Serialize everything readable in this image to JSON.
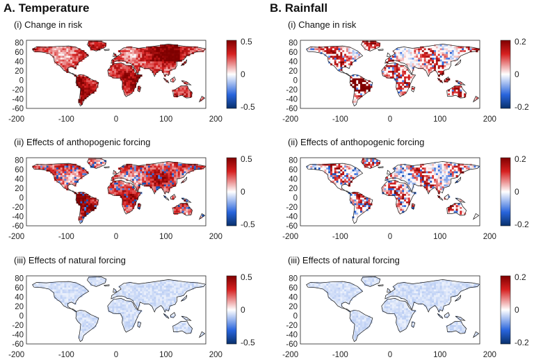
{
  "columns": [
    {
      "title": "A. Temperature",
      "colorbar": {
        "max": "0.5",
        "mid": "0",
        "min": "-0.5"
      },
      "panels": [
        {
          "title": "(i) Change in risk",
          "intensity": "strong",
          "mode": "warm"
        },
        {
          "title": "(ii) Effects of anthopogenic forcing",
          "intensity": "strong-mixed",
          "mode": "warm"
        },
        {
          "title": "(iii) Effects of natural forcing",
          "intensity": "faint",
          "mode": "cool"
        }
      ]
    },
    {
      "title": "B. Rainfall",
      "colorbar": {
        "max": "0.2",
        "mid": "0",
        "min": "-0.2"
      },
      "panels": [
        {
          "title": "(i) Change in risk",
          "intensity": "medium",
          "mode": "warm"
        },
        {
          "title": "(ii) Effects of anthopogenic forcing",
          "intensity": "medium-mixed",
          "mode": "warm"
        },
        {
          "title": "(iii) Effects of natural forcing",
          "intensity": "faint",
          "mode": "cool"
        }
      ]
    }
  ],
  "axes": {
    "x_ticks": [
      "-200",
      "-100",
      "0",
      "100",
      "200"
    ],
    "y_ticks": [
      "80",
      "60",
      "40",
      "20",
      "0",
      "-20",
      "-40",
      "-60"
    ]
  },
  "colormap": {
    "low": "#08306b",
    "mid": "#ffffff",
    "high": "#7f0000"
  }
}
